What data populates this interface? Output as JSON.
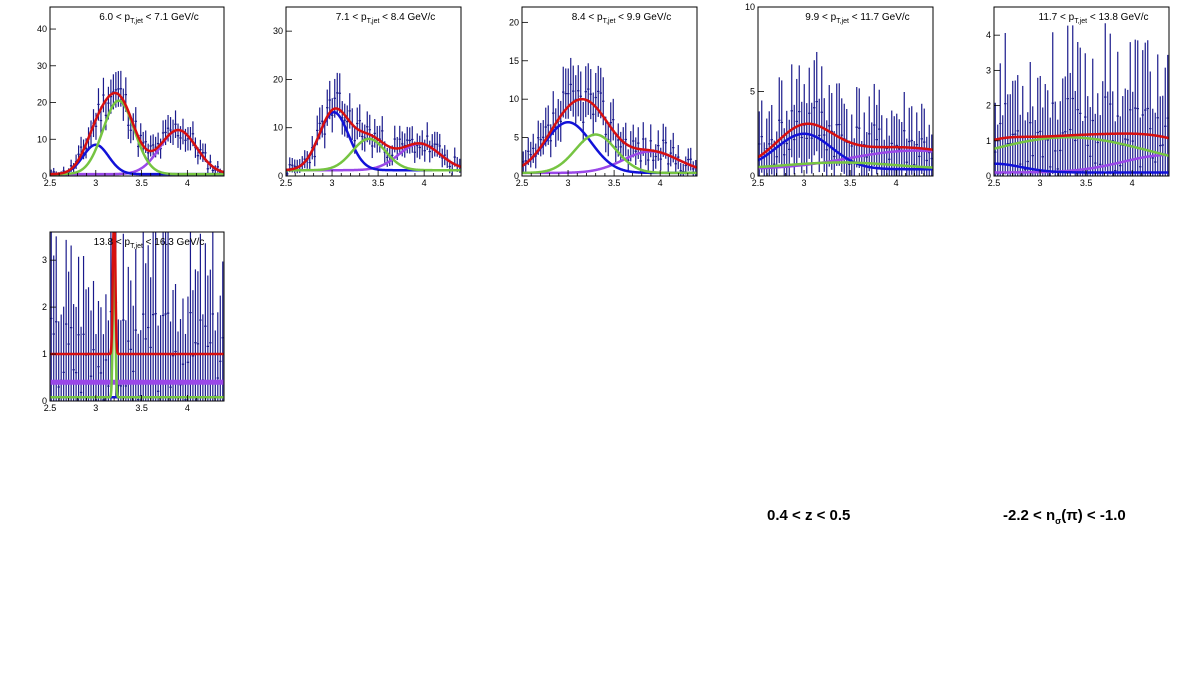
{
  "captions": {
    "z_range": "0.4 < z < 0.5",
    "nsigma_prefix": "-2.2 < n",
    "nsigma_sub": "σ",
    "nsigma_suffix": "(π) < -1.0"
  },
  "colors": {
    "data": "#1a1a8c",
    "total_fit": "#d61010",
    "blue_component": "#1212d8",
    "green_component": "#76c442",
    "purple_component": "#9a48e8"
  },
  "chart_data": [
    {
      "type": "line",
      "title": "6.0 < p_T,jet < 7.1 GeV/c",
      "title_parts": [
        "6.0 < p",
        "T,jet",
        " < 7.1 GeV/c"
      ],
      "xlim": [
        2.5,
        4.4
      ],
      "ylim": [
        0,
        46
      ],
      "x_ticks": [
        2.5,
        3,
        3.5,
        4
      ],
      "x_tick_labels": [
        "2.5",
        "3",
        "3.5",
        "4"
      ],
      "y_ticks": [
        0,
        10,
        20,
        30,
        40
      ],
      "y_tick_labels": [
        "0",
        "10",
        "20",
        "30",
        "40"
      ],
      "components": {
        "blue": {
          "amp": 8,
          "mean": 3.0,
          "sigma": 0.14
        },
        "green": {
          "amp": 20,
          "mean": 3.25,
          "sigma": 0.17
        },
        "purple": {
          "amp": 12,
          "mean": 3.9,
          "sigma": 0.2
        },
        "background": 0.5
      },
      "data_seed": 11
    },
    {
      "type": "line",
      "title": "7.1 < p_T,jet < 8.4 GeV/c",
      "title_parts": [
        "7.1 < p",
        "T,jet",
        " < 8.4 GeV/c"
      ],
      "xlim": [
        2.5,
        4.4
      ],
      "ylim": [
        0,
        35
      ],
      "x_ticks": [
        2.5,
        3,
        3.5,
        4
      ],
      "x_tick_labels": [
        "2.5",
        "3",
        "3.5",
        "4"
      ],
      "y_ticks": [
        0,
        10,
        20,
        30
      ],
      "y_tick_labels": [
        "0",
        "10",
        "20",
        "30"
      ],
      "components": {
        "blue": {
          "amp": 12,
          "mean": 3.02,
          "sigma": 0.16
        },
        "green": {
          "amp": 6.5,
          "mean": 3.4,
          "sigma": 0.18
        },
        "purple": {
          "amp": 5.5,
          "mean": 3.95,
          "sigma": 0.22
        },
        "background": 1.2
      },
      "data_seed": 23
    },
    {
      "type": "line",
      "title": "8.4 < p_T,jet < 9.9 GeV/c",
      "title_parts": [
        "8.4 < p",
        "T,jet",
        " < 9.9 GeV/c"
      ],
      "xlim": [
        2.5,
        4.4
      ],
      "ylim": [
        0,
        22
      ],
      "x_ticks": [
        2.5,
        3,
        3.5,
        4
      ],
      "x_tick_labels": [
        "2.5",
        "3",
        "3.5",
        "4"
      ],
      "y_ticks": [
        0,
        5,
        10,
        15,
        20
      ],
      "y_tick_labels": [
        "0",
        "5",
        "10",
        "15",
        "20"
      ],
      "components": {
        "blue": {
          "amp": 6.6,
          "mean": 3.0,
          "sigma": 0.25
        },
        "green": {
          "amp": 5.0,
          "mean": 3.3,
          "sigma": 0.22
        },
        "purple": {
          "amp": 2.8,
          "mean": 3.9,
          "sigma": 0.3
        },
        "background": 0.4
      },
      "data_seed": 37
    },
    {
      "type": "line",
      "title": "9.9 < p_T,jet < 11.7 GeV/c",
      "title_parts": [
        "9.9 < p",
        "T,jet",
        " < 11.7 GeV/c"
      ],
      "xlim": [
        2.5,
        4.4
      ],
      "ylim": [
        0,
        10
      ],
      "x_ticks": [
        2.5,
        3,
        3.5,
        4
      ],
      "x_tick_labels": [
        "2.5",
        "3",
        "3.5",
        "4"
      ],
      "y_ticks": [
        0,
        5,
        10
      ],
      "y_tick_labels": [
        "0",
        "5",
        "10"
      ],
      "components": {
        "blue": {
          "amp": 2.1,
          "mean": 3.0,
          "sigma": 0.3
        },
        "green": {
          "amp": 0.4,
          "mean": 3.4,
          "sigma": 0.6
        },
        "purple": {
          "amp": 1.1,
          "mean": 4.2,
          "sigma": 0.7
        },
        "background": 0.4
      },
      "data_seed": 41
    },
    {
      "type": "line",
      "title": "11.7 < p_T,jet < 13.8 GeV/c",
      "title_parts": [
        "11.7 < p",
        "T,jet",
        " < 13.8 GeV/c"
      ],
      "xlim": [
        2.5,
        4.4
      ],
      "ylim": [
        0,
        4.8
      ],
      "x_ticks": [
        2.5,
        3,
        3.5,
        4
      ],
      "x_tick_labels": [
        "2.5",
        "3",
        "3.5",
        "4"
      ],
      "y_ticks": [
        0,
        1,
        2,
        3,
        4
      ],
      "y_tick_labels": [
        "0",
        "1",
        "2",
        "3",
        "4"
      ],
      "components": {
        "blue": {
          "amp": 0.25,
          "mean": 2.5,
          "sigma": 0.3
        },
        "green": {
          "amp": 1.0,
          "mean": 3.3,
          "sigma": 0.9
        },
        "purple": {
          "amp": 0.5,
          "mean": 4.4,
          "sigma": 0.5
        },
        "background": 0.1
      },
      "data_seed": 53
    },
    {
      "type": "line",
      "title": "13.8 < p_T,jet < 16.3 GeV/c",
      "title_parts": [
        "13.8 < p",
        "T,jet",
        " < 16.3 GeV/c"
      ],
      "xlim": [
        2.5,
        4.4
      ],
      "ylim": [
        0,
        3.6
      ],
      "x_ticks": [
        2.5,
        3,
        3.5,
        4
      ],
      "x_tick_labels": [
        "2.5",
        "3",
        "3.5",
        "4"
      ],
      "y_ticks": [
        0,
        1,
        2,
        3
      ],
      "y_tick_labels": [
        "0",
        "1",
        "2",
        "3"
      ],
      "components": {
        "blue": {
          "amp": 0.0,
          "mean": 3.0,
          "sigma": 0.3
        },
        "green": {
          "amp": 3.6,
          "mean": 3.2,
          "sigma": 0.012
        },
        "purple": {
          "amp": 0.0,
          "mean": 3.9,
          "sigma": 0.3
        },
        "background": 0.08,
        "flat_purple": 0.4,
        "flat_red": 1.0
      },
      "data_seed": 67
    }
  ]
}
